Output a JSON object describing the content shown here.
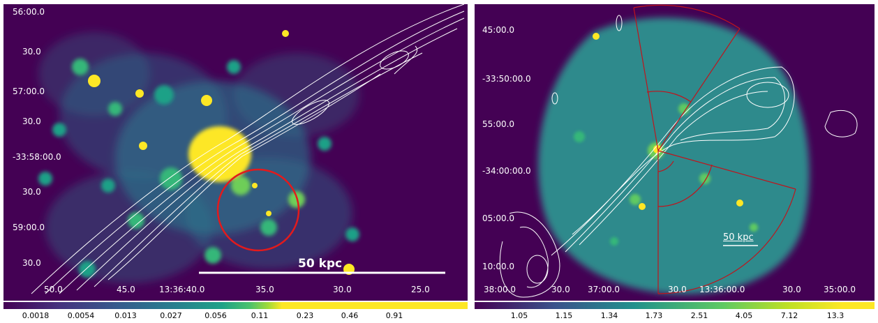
{
  "left_panel": {
    "dec_labels": [
      "56:00.0",
      "30.0",
      "57:00.0",
      "30.0",
      "-33:58:00.0",
      "30.0",
      "59:00.0",
      "30.0"
    ],
    "ra_labels": [
      "50.0",
      "45.0",
      "13:36:40.0",
      "35.0",
      "30.0",
      "25.0"
    ],
    "scalebar": "50 kpc",
    "colorbar_ticks": [
      "0.0018",
      "0.0054",
      "0.013",
      "0.027",
      "0.056",
      "0.11",
      "0.23",
      "0.46",
      "0.91"
    ],
    "colors": {
      "circle": "#e31a1c",
      "contours": "#ffffff",
      "background": "#440154"
    }
  },
  "right_panel": {
    "dec_labels": [
      "45:00.0",
      "-33:50:00.0",
      "55:00.0",
      "-34:00:00.0",
      "05:00.0",
      "10:00.0"
    ],
    "ra_labels": [
      "38:00.0",
      "30.0",
      "37:00.0",
      "30.0",
      "13:36:00.0",
      "30.0",
      "35:00.0"
    ],
    "scalebar": "50 kpc",
    "colorbar_ticks": [
      "1.05",
      "1.15",
      "1.34",
      "1.73",
      "2.51",
      "4.05",
      "7.12",
      "13.3"
    ],
    "colors": {
      "sectors": "#c0141c",
      "contours": "#ffffff"
    }
  }
}
